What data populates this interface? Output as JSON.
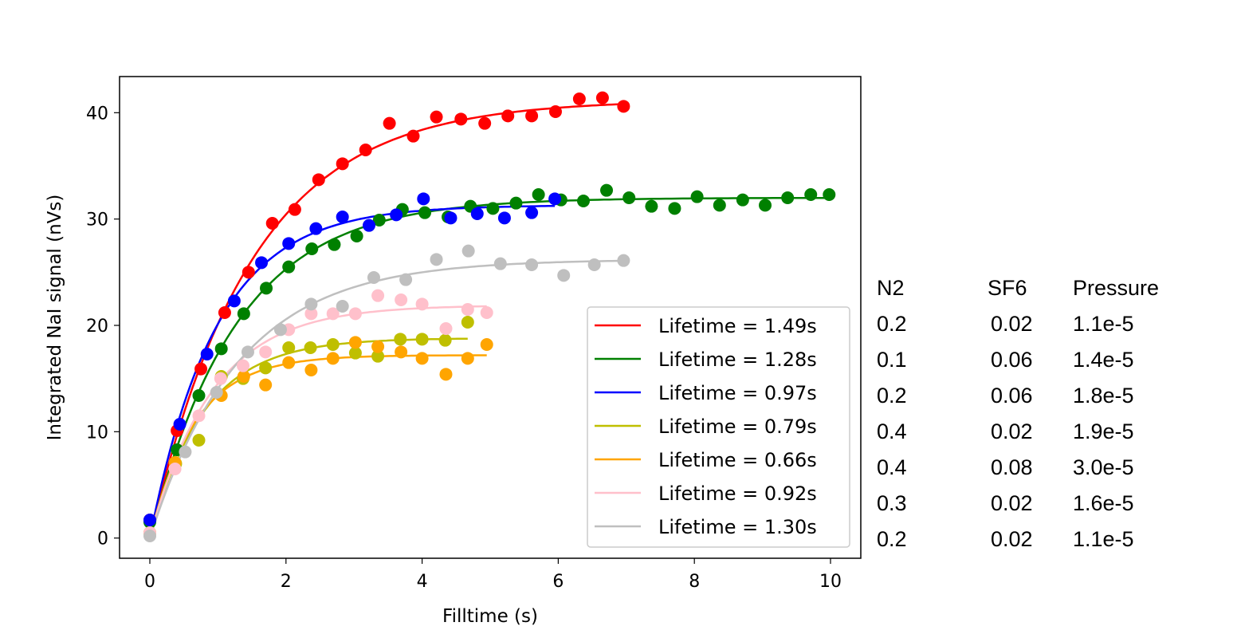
{
  "chart_data": {
    "type": "scatter",
    "xlabel": "Filltime (s)",
    "ylabel": "Integrated NaI signal (nVs)",
    "xlim": [
      -0.445,
      10.445
    ],
    "ylim": [
      -1.9,
      43.4
    ],
    "xticks": [
      0,
      2,
      4,
      6,
      8,
      10
    ],
    "yticks": [
      0,
      10,
      20,
      30,
      40
    ],
    "grid": false,
    "legend_position": "lower-right",
    "series": [
      {
        "name": "Lifetime = 1.49s",
        "color": "#ff0000",
        "fit": {
          "amplitude": 41.2,
          "tau": 1.49
        },
        "x": [
          0,
          0.4,
          0.75,
          1.1,
          1.45,
          1.8,
          2.13,
          2.48,
          2.83,
          3.17,
          3.52,
          3.87,
          4.21,
          4.57,
          4.92,
          5.26,
          5.61,
          5.96,
          6.31,
          6.65,
          6.96
        ],
        "y": [
          1.7,
          10.1,
          15.9,
          21.2,
          25.0,
          29.6,
          30.9,
          33.7,
          35.2,
          36.5,
          39.0,
          37.8,
          39.6,
          39.4,
          39.0,
          39.7,
          39.7,
          40.1,
          41.3,
          41.4,
          40.6
        ]
      },
      {
        "name": "Lifetime = 1.28s",
        "color": "#008000",
        "fit": {
          "amplitude": 32.0,
          "tau": 1.28
        },
        "x": [
          0,
          0.4,
          0.72,
          1.05,
          1.38,
          1.71,
          2.04,
          2.38,
          2.71,
          3.04,
          3.37,
          3.71,
          4.04,
          4.38,
          4.71,
          5.04,
          5.38,
          5.71,
          6.04,
          6.37,
          6.71,
          7.04,
          7.37,
          7.71,
          8.04,
          8.37,
          8.71,
          9.04,
          9.37,
          9.71,
          9.98
        ],
        "y": [
          1.5,
          8.3,
          13.4,
          17.8,
          21.1,
          23.5,
          25.5,
          27.2,
          27.6,
          28.4,
          29.9,
          30.9,
          30.6,
          30.2,
          31.2,
          31.0,
          31.5,
          32.3,
          31.8,
          31.7,
          32.7,
          32.0,
          31.2,
          31.0,
          32.1,
          31.3,
          31.8,
          31.3,
          32.0,
          32.3,
          32.3
        ]
      },
      {
        "name": "Lifetime = 0.97s",
        "color": "#0000ff",
        "fit": {
          "amplitude": 31.3,
          "tau": 0.97
        },
        "x": [
          0,
          0.44,
          0.84,
          1.24,
          1.64,
          2.04,
          2.44,
          2.83,
          3.22,
          3.62,
          4.02,
          4.42,
          4.81,
          5.21,
          5.61,
          5.95
        ],
        "y": [
          1.7,
          10.7,
          17.3,
          22.3,
          25.9,
          27.7,
          29.1,
          30.2,
          29.4,
          30.4,
          31.9,
          30.1,
          30.5,
          30.1,
          30.6,
          31.9
        ]
      },
      {
        "name": "Lifetime = 0.79s",
        "color": "#bfbf00",
        "fit": {
          "amplitude": 18.8,
          "tau": 0.79
        },
        "x": [
          0,
          0.38,
          0.72,
          1.05,
          1.37,
          1.7,
          2.04,
          2.36,
          2.69,
          3.02,
          3.35,
          3.68,
          4.0,
          4.34,
          4.67
        ],
        "y": [
          0.5,
          7.0,
          9.2,
          15.2,
          15.0,
          16.0,
          17.9,
          17.9,
          18.2,
          17.4,
          17.1,
          18.7,
          18.7,
          18.6,
          20.3
        ]
      },
      {
        "name": "Lifetime = 0.66s",
        "color": "#ffa500",
        "fit": {
          "amplitude": 17.2,
          "tau": 0.66
        },
        "x": [
          0,
          0.37,
          1.05,
          1.38,
          1.7,
          2.04,
          2.37,
          2.69,
          3.02,
          3.35,
          3.69,
          4.0,
          4.35,
          4.67,
          4.95
        ],
        "y": [
          0.5,
          7.1,
          13.4,
          15.2,
          14.4,
          16.5,
          15.8,
          16.9,
          18.4,
          18.0,
          17.5,
          16.9,
          15.4,
          16.9,
          18.2
        ]
      },
      {
        "name": "Lifetime = 0.92s",
        "color": "#ffc0cb",
        "fit": {
          "amplitude": 21.9,
          "tau": 0.92
        },
        "x": [
          0,
          0.37,
          0.72,
          1.04,
          1.37,
          1.7,
          2.04,
          2.37,
          2.69,
          3.02,
          3.35,
          3.69,
          4.0,
          4.35,
          4.67,
          4.95
        ],
        "y": [
          0.5,
          6.5,
          11.5,
          15.0,
          16.2,
          17.5,
          19.6,
          21.1,
          21.1,
          21.1,
          22.8,
          22.4,
          22.0,
          19.7,
          21.5,
          21.2
        ]
      },
      {
        "name": "Lifetime = 1.30s",
        "color": "#bfbfbf",
        "fit": {
          "amplitude": 26.2,
          "tau": 1.3
        },
        "x": [
          0,
          0.52,
          0.98,
          1.44,
          1.92,
          2.37,
          2.83,
          3.29,
          3.76,
          4.21,
          4.68,
          5.15,
          5.61,
          6.08,
          6.53,
          6.96
        ],
        "y": [
          0.2,
          8.1,
          13.7,
          17.5,
          19.6,
          22.0,
          21.8,
          24.5,
          24.3,
          26.2,
          27.0,
          25.8,
          25.7,
          24.7,
          25.7,
          26.1
        ]
      }
    ],
    "annotation_table": {
      "headers": [
        "N2",
        "SF6",
        "Pressure"
      ],
      "rows": [
        [
          "0.2",
          "0.02",
          "1.1e-5"
        ],
        [
          "0.1",
          "0.06",
          "1.4e-5"
        ],
        [
          "0.2",
          "0.06",
          "1.8e-5"
        ],
        [
          "0.4",
          "0.02",
          "1.9e-5"
        ],
        [
          "0.4",
          "0.08",
          "3.0e-5"
        ],
        [
          "0.3",
          "0.02",
          "1.6e-5"
        ],
        [
          "0.2",
          "0.02",
          "1.1e-5"
        ]
      ]
    }
  }
}
